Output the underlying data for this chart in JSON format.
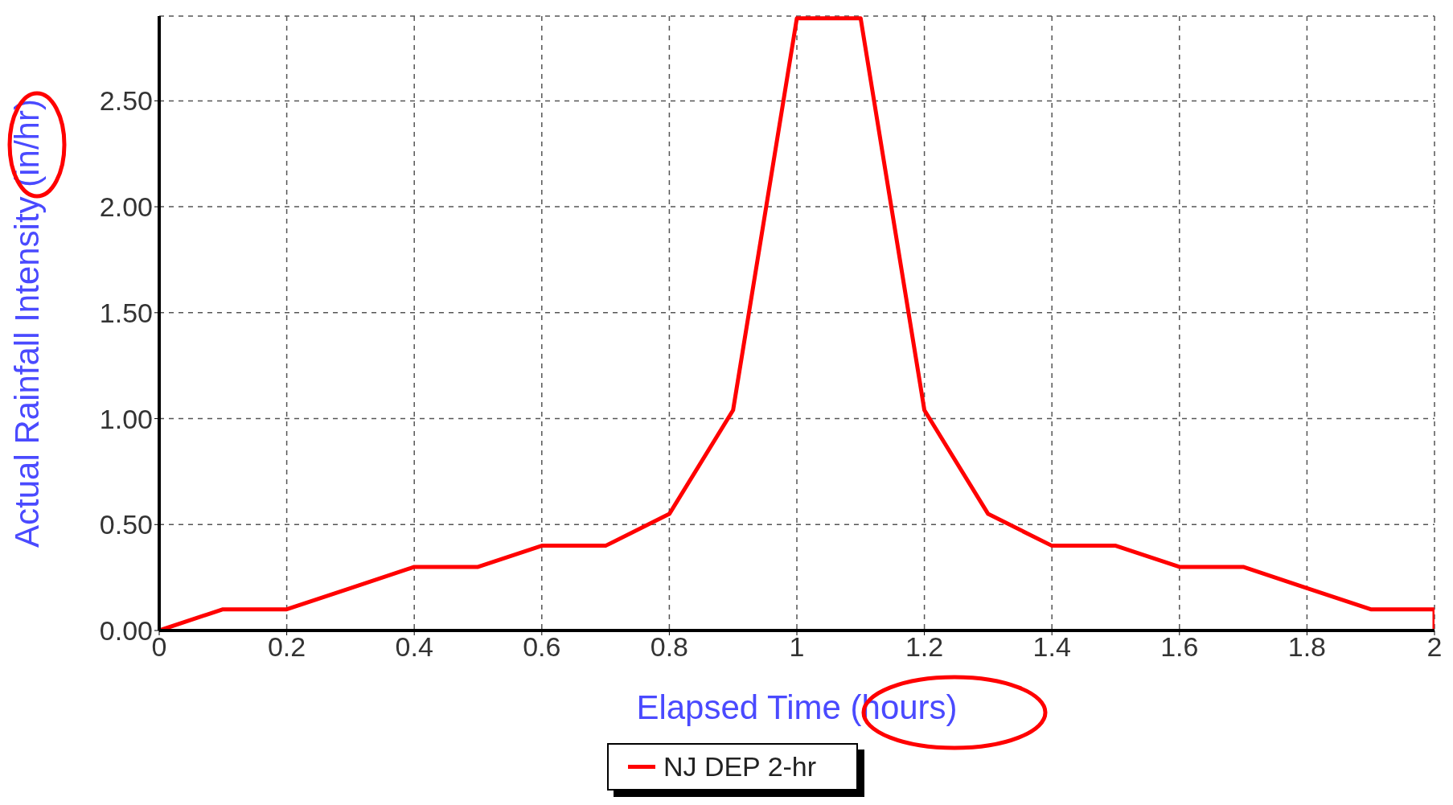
{
  "chart_data": {
    "type": "line",
    "xlabel": "Elapsed Time (hours)",
    "ylabel": "Actual Rainfall Intensity (in/hr)",
    "series": [
      {
        "name": "NJ DEP 2-hr",
        "color": "#ff0000",
        "x": [
          0,
          0.1,
          0.2,
          0.3,
          0.4,
          0.5,
          0.6,
          0.7,
          0.8,
          0.9,
          1.0,
          1.1,
          1.2,
          1.3,
          1.4,
          1.5,
          1.6,
          1.7,
          1.8,
          1.9,
          2.0,
          2.0
        ],
        "values": [
          0,
          0.1,
          0.1,
          0.2,
          0.3,
          0.3,
          0.4,
          0.4,
          0.55,
          1.04,
          2.89,
          2.89,
          1.04,
          0.55,
          0.4,
          0.4,
          0.3,
          0.3,
          0.2,
          0.1,
          0.1,
          0
        ]
      }
    ],
    "xlim": [
      0,
      2
    ],
    "xticks": [
      0,
      0.2,
      0.4,
      0.6,
      0.8,
      1,
      1.2,
      1.4,
      1.6,
      1.8,
      2
    ],
    "ylim": [
      0,
      2.9
    ],
    "yticks": [
      {
        "value": 0,
        "label": "0.00"
      },
      {
        "value": 0.5,
        "label": "0.50"
      },
      {
        "value": 1,
        "label": "1.00"
      },
      {
        "value": 1.5,
        "label": "1.50"
      },
      {
        "value": 2,
        "label": "2.00"
      },
      {
        "value": 2.5,
        "label": "2.50"
      }
    ],
    "grid": true,
    "legend": "bottom",
    "marker": "none",
    "line_style": "solid"
  }
}
